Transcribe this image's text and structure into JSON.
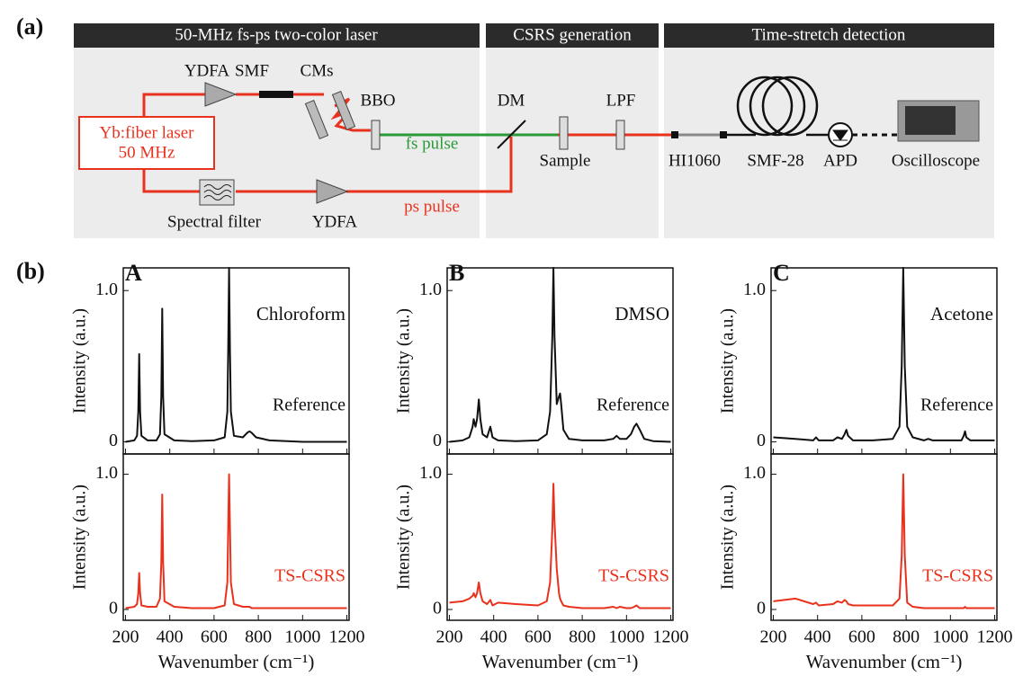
{
  "figure": {
    "label_a": "(a)",
    "label_b": "(b)"
  },
  "diagram": {
    "sections": [
      "50-MHz fs-ps two-color laser",
      "CSRS generation",
      "Time-stretch detection"
    ],
    "laser": [
      "Yb:fiber laser",
      "50 MHz"
    ],
    "components": [
      "YDFA",
      "SMF",
      "CMs",
      "BBO",
      "DM",
      "LPF",
      "Sample",
      "HI1060",
      "SMF-28",
      "APD",
      "Oscilloscope",
      "Spectral filter",
      "YDFA"
    ],
    "beams": [
      "fs pulse",
      "ps pulse"
    ]
  },
  "chart_data": [
    {
      "type": "line",
      "label": "A",
      "annotation": "Chloroform",
      "xlabel": "Wavenumber (cm⁻¹)",
      "ylabel": "Intensity (a.u.)",
      "xlim": [
        190,
        1210
      ],
      "ylim": [
        -0.08,
        1.15
      ],
      "xticks": [
        200,
        400,
        600,
        800,
        1000,
        1200
      ],
      "yticks": [
        0,
        {
          "value": 1,
          "label": "1.0"
        }
      ],
      "x": [
        200,
        240,
        252,
        258,
        262,
        266,
        272,
        300,
        340,
        356,
        362,
        366,
        370,
        376,
        420,
        500,
        600,
        648,
        660,
        664,
        668,
        672,
        676,
        690,
        730,
        750,
        760,
        770,
        790,
        850,
        1000,
        1200
      ],
      "series": [
        {
          "name": "Reference",
          "color": "#111111",
          "values": [
            0,
            0.01,
            0.04,
            0.2,
            0.58,
            0.2,
            0.04,
            0.01,
            0.01,
            0.05,
            0.3,
            0.88,
            0.3,
            0.05,
            0.01,
            0.005,
            0.01,
            0.03,
            0.2,
            0.6,
            1.15,
            0.6,
            0.2,
            0.04,
            0.03,
            0.06,
            0.07,
            0.06,
            0.03,
            0.01,
            0,
            0
          ]
        },
        {
          "name": "TS-CSRS",
          "color": "#e8321e",
          "values": [
            0.01,
            0.02,
            0.04,
            0.12,
            0.27,
            0.12,
            0.03,
            0.02,
            0.02,
            0.08,
            0.35,
            0.85,
            0.35,
            0.06,
            0.02,
            0.01,
            0.01,
            0.03,
            0.2,
            0.6,
            1.0,
            0.6,
            0.2,
            0.04,
            0.02,
            0.02,
            0.02,
            0.01,
            0.01,
            0.01,
            0.01,
            0.01
          ]
        }
      ]
    },
    {
      "type": "line",
      "label": "B",
      "annotation": "DMSO",
      "xlabel": "Wavenumber (cm⁻¹)",
      "ylabel": "Intensity (a.u.)",
      "xlim": [
        190,
        1210
      ],
      "ylim": [
        -0.08,
        1.15
      ],
      "xticks": [
        200,
        400,
        600,
        800,
        1000,
        1200
      ],
      "yticks": [
        0,
        {
          "value": 1,
          "label": "1.0"
        }
      ],
      "x": [
        200,
        260,
        290,
        305,
        310,
        318,
        325,
        333,
        340,
        350,
        370,
        385,
        395,
        420,
        500,
        600,
        640,
        655,
        665,
        670,
        675,
        685,
        695,
        700,
        705,
        715,
        740,
        800,
        900,
        940,
        955,
        970,
        1000,
        1020,
        1035,
        1045,
        1060,
        1080,
        1120,
        1200
      ],
      "series": [
        {
          "name": "Reference",
          "color": "#111111",
          "values": [
            0,
            0.01,
            0.03,
            0.1,
            0.15,
            0.1,
            0.15,
            0.28,
            0.15,
            0.05,
            0.03,
            0.1,
            0.03,
            0.01,
            0.005,
            0.01,
            0.05,
            0.2,
            0.7,
            1.15,
            0.7,
            0.25,
            0.3,
            0.32,
            0.25,
            0.08,
            0.02,
            0.01,
            0.01,
            0.02,
            0.04,
            0.02,
            0.02,
            0.05,
            0.1,
            0.12,
            0.08,
            0.02,
            0.005,
            0
          ]
        },
        {
          "name": "TS-CSRS",
          "color": "#e8321e",
          "values": [
            0.05,
            0.06,
            0.08,
            0.1,
            0.12,
            0.09,
            0.12,
            0.2,
            0.12,
            0.06,
            0.04,
            0.07,
            0.03,
            0.05,
            0.04,
            0.03,
            0.06,
            0.2,
            0.6,
            0.93,
            0.65,
            0.3,
            0.12,
            0.08,
            0.06,
            0.03,
            0.02,
            0.01,
            0.01,
            0.02,
            0.01,
            0.02,
            0.01,
            0.01,
            0.02,
            0.03,
            0.01,
            0.01,
            0.01,
            0.01
          ]
        }
      ]
    },
    {
      "type": "line",
      "label": "C",
      "annotation": "Acetone",
      "xlabel": "Wavenumber (cm⁻¹)",
      "ylabel": "Intensity (a.u.)",
      "xlim": [
        190,
        1210
      ],
      "ylim": [
        -0.08,
        1.15
      ],
      "xticks": [
        200,
        400,
        600,
        800,
        1000,
        1200
      ],
      "yticks": [
        0,
        {
          "value": 1,
          "label": "1.0"
        }
      ],
      "x": [
        200,
        300,
        380,
        393,
        405,
        470,
        490,
        510,
        522,
        530,
        538,
        560,
        650,
        740,
        770,
        780,
        787,
        794,
        805,
        830,
        880,
        900,
        920,
        1000,
        1050,
        1060,
        1066,
        1072,
        1090,
        1200
      ],
      "series": [
        {
          "name": "Reference",
          "color": "#111111",
          "values": [
            0.03,
            0.02,
            0.01,
            0.03,
            0.01,
            0.01,
            0.03,
            0.02,
            0.05,
            0.08,
            0.04,
            0.01,
            0.01,
            0.02,
            0.1,
            0.5,
            1.15,
            0.5,
            0.1,
            0.03,
            0.01,
            0.02,
            0.01,
            0.01,
            0.01,
            0.04,
            0.07,
            0.03,
            0.01,
            0.01
          ]
        },
        {
          "name": "TS-CSRS",
          "color": "#e8321e",
          "values": [
            0.06,
            0.08,
            0.04,
            0.05,
            0.03,
            0.04,
            0.06,
            0.05,
            0.07,
            0.06,
            0.04,
            0.03,
            0.03,
            0.03,
            0.08,
            0.4,
            1.0,
            0.4,
            0.05,
            0.02,
            0.01,
            0.01,
            0.01,
            0.01,
            0.01,
            0.01,
            0.02,
            0.01,
            0.01,
            0.01
          ]
        }
      ]
    }
  ]
}
